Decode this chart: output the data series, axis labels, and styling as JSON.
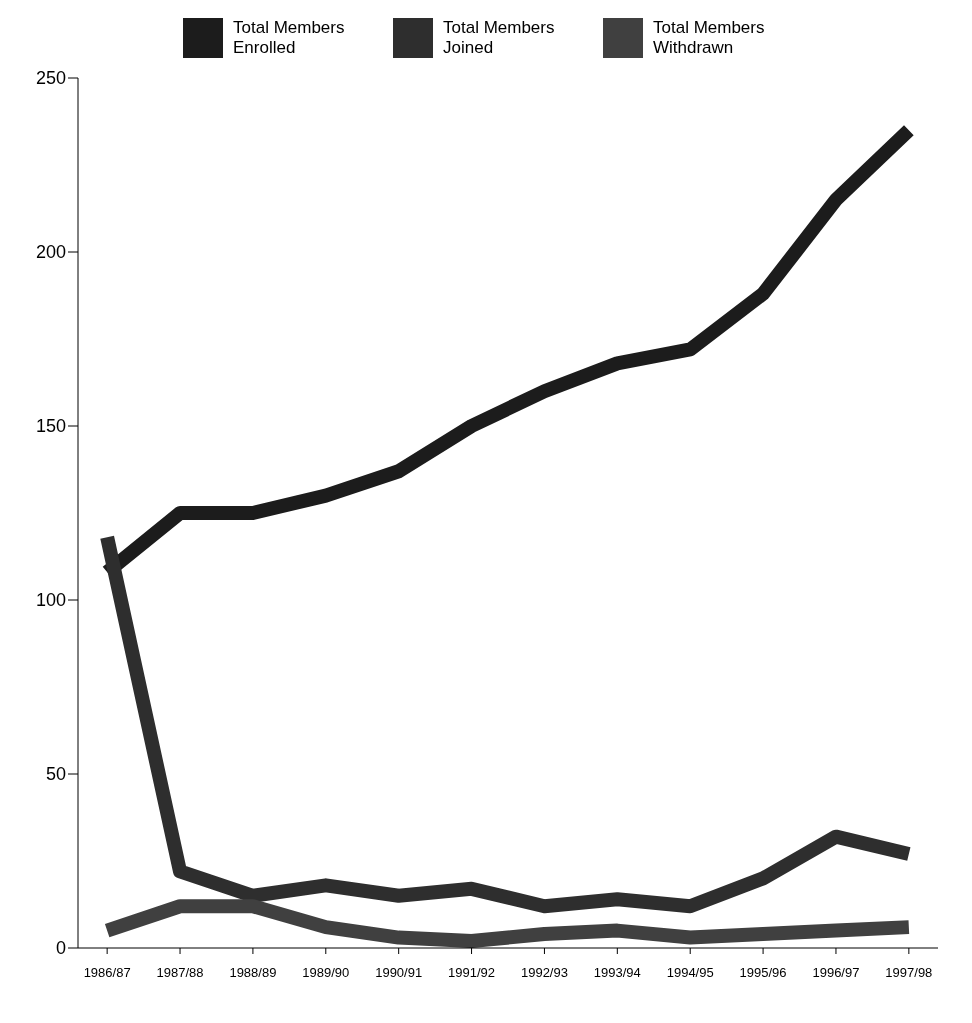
{
  "chart_data": {
    "type": "line",
    "categories": [
      "1986/87",
      "1987/88",
      "1988/89",
      "1989/90",
      "1990/91",
      "1991/92",
      "1992/93",
      "1993/94",
      "1994/95",
      "1995/96",
      "1996/97",
      "1997/98"
    ],
    "series": [
      {
        "name": "Total Members Enrolled",
        "color": "#1c1c1c",
        "values": [
          108,
          125,
          125,
          130,
          137,
          150,
          160,
          168,
          172,
          188,
          215,
          235
        ]
      },
      {
        "name": "Total Members Joined",
        "color": "#2e2e2e",
        "values": [
          118,
          22,
          15,
          18,
          15,
          17,
          12,
          14,
          12,
          20,
          32,
          27
        ]
      },
      {
        "name": "Total Members Withdrawn",
        "color": "#404040",
        "values": [
          5,
          12,
          12,
          6,
          3,
          2,
          4,
          5,
          3,
          4,
          5,
          6
        ]
      }
    ],
    "ylim": [
      0,
      250
    ],
    "yticks": [
      0,
      50,
      100,
      150,
      200,
      250
    ],
    "grid": false,
    "legend": "top",
    "marker": "none",
    "line_style": "solid"
  }
}
